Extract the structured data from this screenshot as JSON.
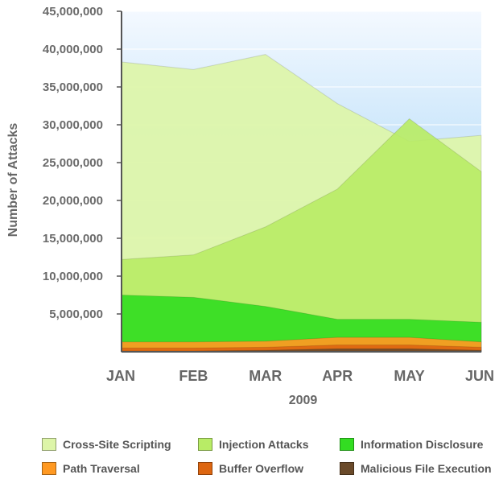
{
  "chart_data": {
    "type": "area",
    "title": "",
    "xlabel": "2009",
    "ylabel": "Number of Attacks",
    "categories": [
      "JAN",
      "FEB",
      "MAR",
      "APR",
      "MAY",
      "JUN"
    ],
    "ylim": [
      0,
      45000000
    ],
    "yticks": [
      5000000,
      10000000,
      15000000,
      20000000,
      25000000,
      30000000,
      35000000,
      40000000,
      45000000
    ],
    "ytick_labels": [
      "5,000,000",
      "10,000,000",
      "15,000,000",
      "20,000,000",
      "25,000,000",
      "30,000,000",
      "35,000,000",
      "40,000,000",
      "45,000,000"
    ],
    "legend_position": "bottom",
    "series": [
      {
        "name": "Cross-Site Scripting",
        "color": "#ddf5a8",
        "values": [
          38300000,
          37300000,
          39300000,
          32800000,
          27800000,
          28600000
        ]
      },
      {
        "name": "Injection Attacks",
        "color": "#b8ec66",
        "values": [
          12200000,
          12800000,
          16500000,
          21500000,
          30800000,
          23800000
        ]
      },
      {
        "name": "Information Disclosure",
        "color": "#33dd22",
        "values": [
          7500000,
          7200000,
          6000000,
          4300000,
          4300000,
          3900000
        ]
      },
      {
        "name": "Path Traversal",
        "color": "#ff9922",
        "values": [
          1300000,
          1300000,
          1400000,
          1900000,
          1900000,
          1300000
        ]
      },
      {
        "name": "Buffer Overflow",
        "color": "#dd6611",
        "values": [
          500000,
          500000,
          600000,
          900000,
          900000,
          600000
        ]
      },
      {
        "name": "Malicious File Execution",
        "color": "#6a4a2a",
        "values": [
          100000,
          100000,
          200000,
          400000,
          400000,
          200000
        ]
      }
    ]
  }
}
